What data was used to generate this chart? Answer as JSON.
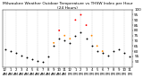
{
  "title": "Milwaukee Weather Outdoor Temperature vs THSW Index per Hour (24 Hours)",
  "title_fontsize": 3.2,
  "background_color": "#ffffff",
  "grid_color": "#bbbbbb",
  "hours": [
    0,
    1,
    2,
    3,
    4,
    5,
    6,
    7,
    8,
    9,
    10,
    11,
    12,
    13,
    14,
    15,
    16,
    17,
    18,
    19,
    20,
    21,
    22,
    23
  ],
  "temp": [
    62,
    60,
    58,
    56,
    54,
    52,
    51,
    50,
    55,
    65,
    72,
    70,
    68,
    75,
    78,
    72,
    65,
    60,
    58,
    56,
    60,
    62,
    58,
    55
  ],
  "thsw": [
    null,
    null,
    null,
    null,
    null,
    null,
    null,
    null,
    null,
    68,
    80,
    75,
    72,
    90,
    95,
    85,
    75,
    65,
    60,
    null,
    null,
    null,
    null,
    null
  ],
  "temp_color": "#000000",
  "thsw_color_low": "#ff8800",
  "thsw_color_high": "#ff0000",
  "thsw_threshold": 78,
  "ylim_min": 45,
  "ylim_max": 100,
  "ytick_values": [
    50,
    55,
    60,
    65,
    70,
    75,
    80,
    85,
    90,
    95,
    100
  ],
  "ylabel_fontsize": 3.0,
  "xlabel_fontsize": 2.8,
  "marker_size": 1.8,
  "dot_linewidth": 0.0,
  "vgrid_positions": [
    0,
    2,
    4,
    6,
    8,
    10,
    12,
    14,
    16,
    18,
    20,
    22
  ],
  "xtick_labels": [
    "12",
    "1",
    "2",
    "3",
    "4",
    "5",
    "6",
    "7",
    "8",
    "9",
    "10",
    "11",
    "12",
    "1",
    "2",
    "3",
    "4",
    "5",
    "6",
    "7",
    "8",
    "9",
    "10",
    "11"
  ],
  "xtick_sublabels": [
    "AM",
    "AM",
    "AM",
    "AM",
    "AM",
    "AM",
    "AM",
    "AM",
    "AM",
    "AM",
    "AM",
    "AM",
    "PM",
    "PM",
    "PM",
    "PM",
    "PM",
    "PM",
    "PM",
    "PM",
    "PM",
    "PM",
    "PM",
    "PM"
  ]
}
